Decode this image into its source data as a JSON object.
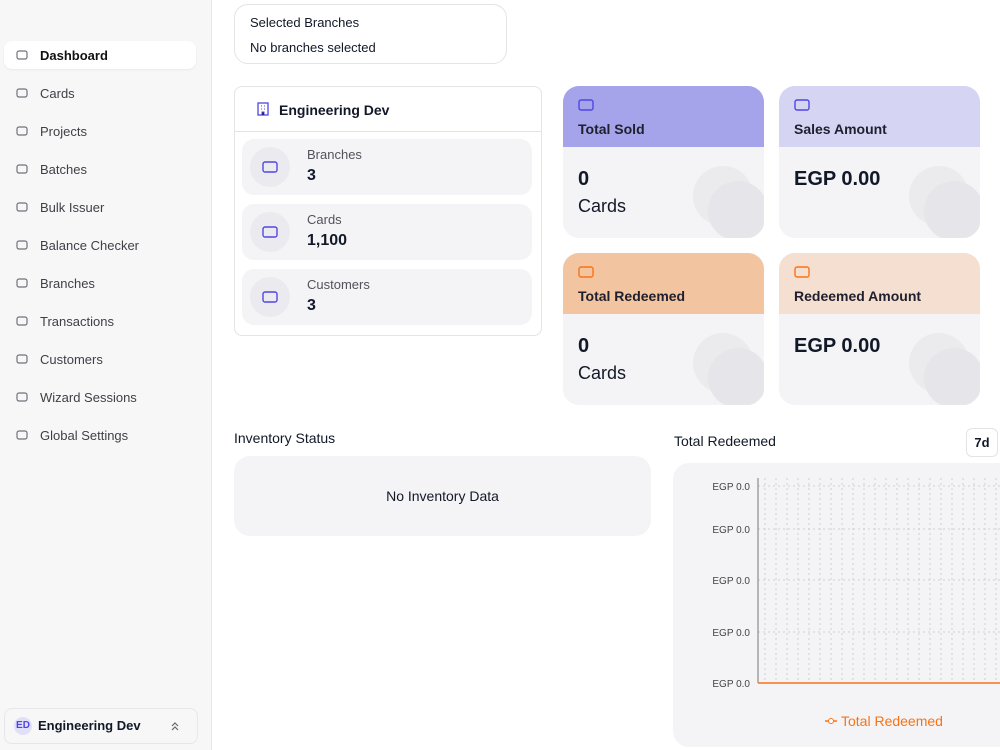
{
  "sidebar": {
    "menu": [
      "Dashboard",
      "Cards",
      "Projects",
      "Batches",
      "Bulk Issuer",
      "Balance Checker",
      "Branches",
      "Transactions",
      "Customers",
      "Wizard Sessions",
      "Global Settings"
    ],
    "user": {
      "initials": "ED",
      "name": "Engineering Dev"
    }
  },
  "branch_filter": {
    "label": "Selected Branches",
    "value": "No branches selected"
  },
  "org_card": {
    "title": "Engineering Dev",
    "stats": [
      {
        "label": "Branches",
        "value": "3"
      },
      {
        "label": "Cards",
        "value": "1,100"
      },
      {
        "label": "Customers",
        "value": "3"
      }
    ]
  },
  "kpis": [
    {
      "title": "Total Sold",
      "value": "0",
      "unit": "Cards"
    },
    {
      "title": "Sales Amount",
      "value": "EGP 0.00"
    },
    {
      "title": "Total Redeemed",
      "value": "0",
      "unit": "Cards"
    },
    {
      "title": "Redeemed Amount",
      "value": "EGP 0.00"
    }
  ],
  "inventory": {
    "title": "Inventory Status",
    "empty": "No Inventory Data"
  },
  "redeemed_chart": {
    "title": "Total Redeemed",
    "range": "7d",
    "y_labels": [
      "EGP 0.0",
      "EGP 0.0",
      "EGP 0.0",
      "EGP 0.0",
      "EGP 0.0"
    ],
    "legend": "Total Redeemed"
  }
}
